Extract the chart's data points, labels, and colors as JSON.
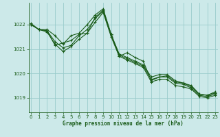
{
  "title": "Graphe pression niveau de la mer (hPa)",
  "background_color": "#cce9e9",
  "grid_color": "#99cccc",
  "line_color": "#1a5c1a",
  "x_ticks": [
    0,
    1,
    2,
    3,
    4,
    5,
    6,
    7,
    8,
    9,
    10,
    11,
    12,
    13,
    14,
    15,
    16,
    17,
    18,
    19,
    20,
    21,
    22,
    23
  ],
  "y_ticks": [
    1019,
    1020,
    1021,
    1022
  ],
  "ylim": [
    1018.4,
    1022.9
  ],
  "xlim": [
    -0.3,
    23.3
  ],
  "series": [
    [
      1022.0,
      1021.8,
      1021.8,
      1021.55,
      1021.2,
      1021.55,
      1021.65,
      1022.0,
      1022.4,
      1022.65,
      1021.6,
      1020.8,
      1020.65,
      1020.5,
      1020.35,
      1019.85,
      1019.95,
      1019.95,
      1019.7,
      1019.6,
      1019.5,
      1019.15,
      1019.1,
      1019.2
    ],
    [
      1022.0,
      1021.8,
      1021.75,
      1021.3,
      1021.05,
      1021.15,
      1021.55,
      1021.8,
      1022.25,
      1022.55,
      1021.55,
      1020.75,
      1020.6,
      1020.45,
      1020.3,
      1019.75,
      1019.85,
      1019.85,
      1019.6,
      1019.55,
      1019.4,
      1019.1,
      1019.05,
      1019.15
    ],
    [
      1022.0,
      1021.8,
      1021.7,
      1021.2,
      1020.9,
      1021.1,
      1021.4,
      1021.65,
      1022.1,
      1022.5,
      1021.5,
      1020.7,
      1020.55,
      1020.4,
      1020.25,
      1019.65,
      1019.75,
      1019.75,
      1019.5,
      1019.45,
      1019.35,
      1019.05,
      1019.0,
      1019.1
    ],
    [
      1022.05,
      1021.8,
      1021.75,
      1021.15,
      1021.25,
      1021.35,
      1021.6,
      1021.65,
      1022.3,
      1022.6,
      1021.6,
      1020.7,
      1020.85,
      1020.65,
      1020.5,
      1019.7,
      1019.85,
      1019.9,
      1019.65,
      1019.6,
      1019.45,
      1019.15,
      1019.1,
      1019.25
    ]
  ]
}
